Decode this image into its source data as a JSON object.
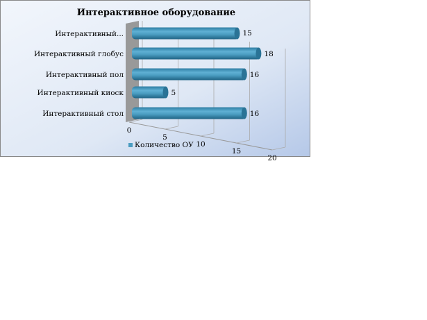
{
  "chart_data": {
    "type": "bar",
    "orientation": "horizontal",
    "style": "3d-cylinder",
    "title": "Интерактивное оборудование",
    "categories": [
      "Интерактивный стол",
      "Интерактивный киоск",
      "Интерактивный пол",
      "Интерактивный глобус",
      "Интерактивный..."
    ],
    "series": [
      {
        "name": "Количество ОУ",
        "values": [
          16,
          5,
          16,
          18,
          15
        ],
        "color": "#4a9cc0"
      }
    ],
    "xlim": [
      0,
      20
    ],
    "xticks": [
      "0",
      "5",
      "10",
      "15",
      "20"
    ],
    "grid": true,
    "legend": "bottom",
    "data_labels": true
  }
}
